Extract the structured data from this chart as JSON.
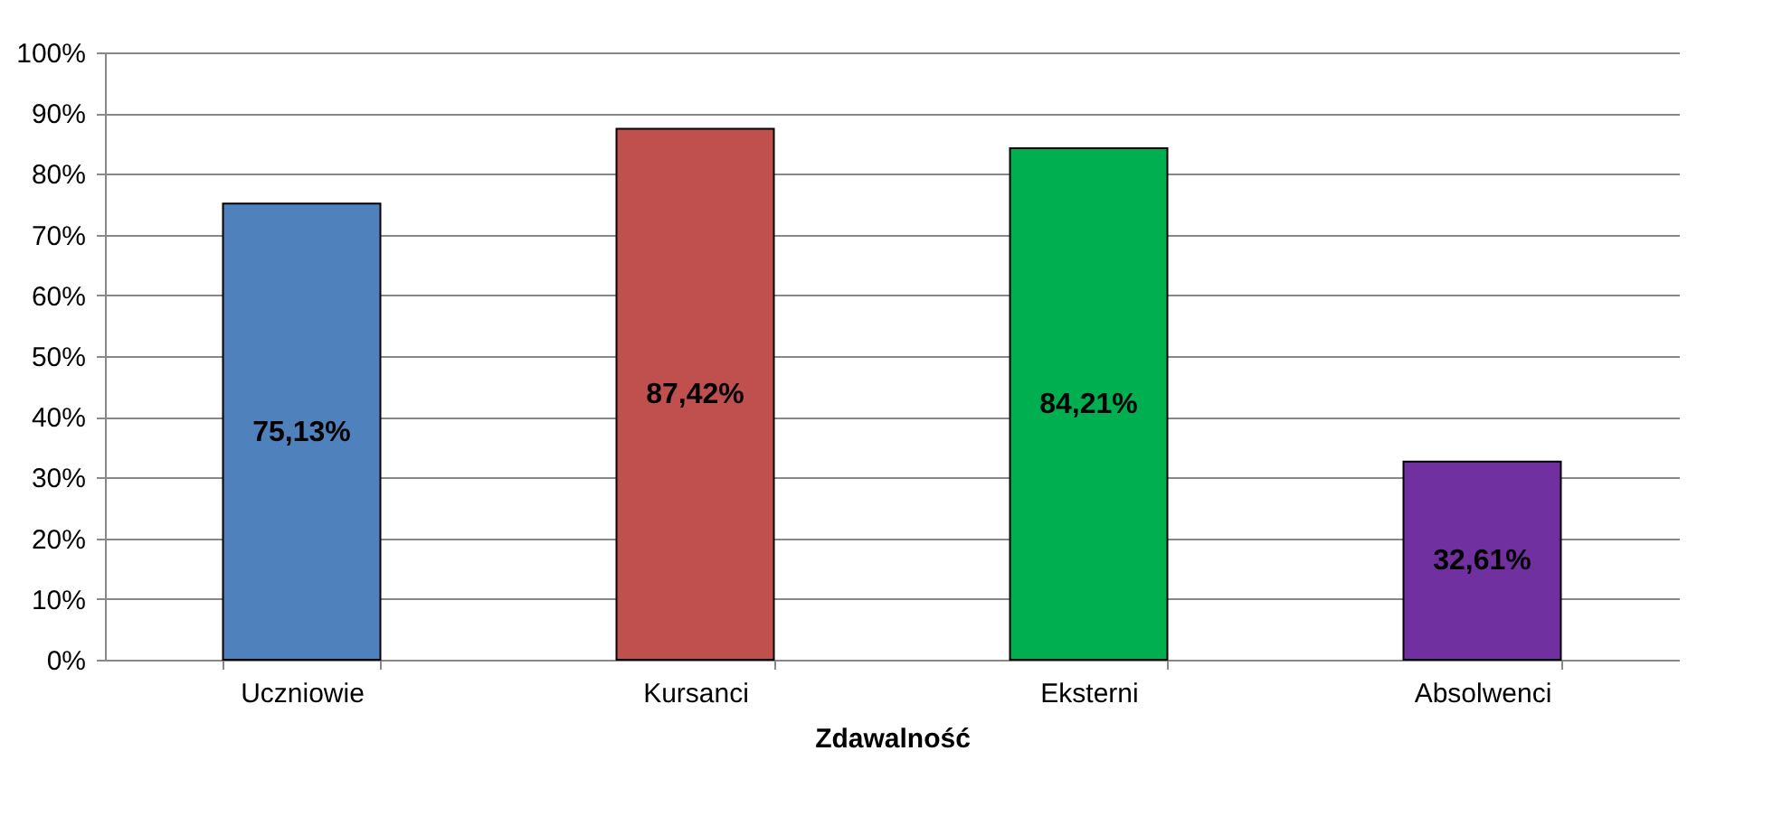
{
  "chart_data": {
    "type": "bar",
    "xlabel": "Zdawalność",
    "categories": [
      "Uczniowie",
      "Kursanci",
      "Eksterni",
      "Absolwenci"
    ],
    "values": [
      75.13,
      87.42,
      84.21,
      32.61
    ],
    "colors": [
      "#4f81bd",
      "#c0504d",
      "#00b050",
      "#7030a0"
    ],
    "value_labels": [
      "75,13%",
      "87,42%",
      "84,21%",
      "32,61%"
    ],
    "ylim": [
      0,
      100
    ],
    "yticks": [
      {
        "value": 0,
        "label": "0%"
      },
      {
        "value": 10,
        "label": "10%"
      },
      {
        "value": 20,
        "label": "20%"
      },
      {
        "value": 30,
        "label": "30%"
      },
      {
        "value": 40,
        "label": "40%"
      },
      {
        "value": 50,
        "label": "50%"
      },
      {
        "value": 60,
        "label": "60%"
      },
      {
        "value": 70,
        "label": "70%"
      },
      {
        "value": 80,
        "label": "80%"
      },
      {
        "value": 90,
        "label": "90%"
      },
      {
        "value": 100,
        "label": "100%"
      }
    ],
    "grid": "y"
  }
}
